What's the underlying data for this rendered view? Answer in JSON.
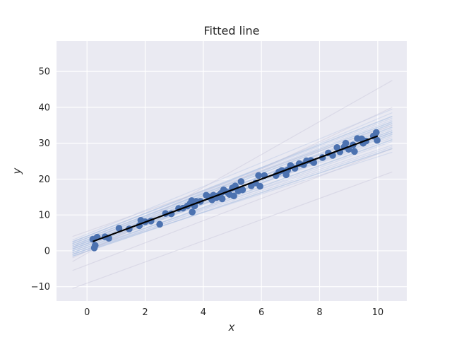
{
  "chart_data": {
    "type": "scatter",
    "title": "Fitted line",
    "xlabel": "x",
    "ylabel": "y",
    "xlim": [
      -1.05,
      11.0
    ],
    "ylim": [
      -14.0,
      58.5
    ],
    "xticks": [
      0,
      2,
      4,
      6,
      8,
      10
    ],
    "yticks": [
      -10,
      0,
      10,
      20,
      30,
      40,
      50
    ],
    "xtick_labels": [
      "0",
      "2",
      "4",
      "6",
      "8",
      "10"
    ],
    "ytick_labels": [
      "−10",
      "0",
      "10",
      "20",
      "30",
      "40",
      "50"
    ],
    "grid": true,
    "colors": {
      "background": "#eaeaf2",
      "grid": "#ffffff",
      "points": "#4c72b0",
      "fit": "#000000",
      "samples_main": "#a4bbe0",
      "samples_faint": "#c7c5da"
    },
    "fit_line": {
      "x": [
        0.2,
        10.0
      ],
      "y": [
        2.6,
        32.0
      ]
    },
    "sample_lines": [
      {
        "x": [
          -0.5,
          10.5
        ],
        "y": [
          2.5,
          37.5
        ],
        "strength": "strong"
      },
      {
        "x": [
          -0.5,
          10.5
        ],
        "y": [
          2.0,
          36.0
        ],
        "strength": "strong"
      },
      {
        "x": [
          -0.5,
          10.5
        ],
        "y": [
          1.5,
          35.5
        ],
        "strength": "strong"
      },
      {
        "x": [
          -0.5,
          10.5
        ],
        "y": [
          1.0,
          34.5
        ],
        "strength": "strong"
      },
      {
        "x": [
          -0.5,
          10.5
        ],
        "y": [
          0.5,
          33.5
        ],
        "strength": "strong"
      },
      {
        "x": [
          -0.5,
          10.5
        ],
        "y": [
          0.0,
          33.0
        ],
        "strength": "strong"
      },
      {
        "x": [
          -0.5,
          10.5
        ],
        "y": [
          -0.5,
          32.5
        ],
        "strength": "strong"
      },
      {
        "x": [
          -0.5,
          10.5
        ],
        "y": [
          -1.0,
          31.0
        ],
        "strength": "strong"
      },
      {
        "x": [
          -0.5,
          10.5
        ],
        "y": [
          -1.5,
          28.5
        ],
        "strength": "strong"
      },
      {
        "x": [
          -0.5,
          10.5
        ],
        "y": [
          -1.0,
          27.5
        ],
        "strength": "medium"
      },
      {
        "x": [
          -0.5,
          10.5
        ],
        "y": [
          3.0,
          39.5
        ],
        "strength": "medium"
      },
      {
        "x": [
          -0.5,
          10.5
        ],
        "y": [
          1.0,
          38.5
        ],
        "strength": "medium"
      },
      {
        "x": [
          -0.5,
          10.5
        ],
        "y": [
          -0.5,
          29.5
        ],
        "strength": "medium"
      },
      {
        "x": [
          -0.5,
          10.5
        ],
        "y": [
          0.5,
          31.5
        ],
        "strength": "medium"
      },
      {
        "x": [
          -0.5,
          10.5
        ],
        "y": [
          2.0,
          36.5
        ],
        "strength": "medium"
      },
      {
        "x": [
          -0.5,
          10.5
        ],
        "y": [
          -1.5,
          30.5
        ],
        "strength": "medium"
      },
      {
        "x": [
          -0.5,
          10.5
        ],
        "y": [
          1.5,
          34.0
        ],
        "strength": "medium"
      },
      {
        "x": [
          -0.5,
          10.5
        ],
        "y": [
          0.0,
          32.0
        ],
        "strength": "medium"
      },
      {
        "x": [
          -0.5,
          10.5
        ],
        "y": [
          2.5,
          37.0
        ],
        "strength": "medium"
      },
      {
        "x": [
          -0.5,
          10.5
        ],
        "y": [
          -1.0,
          29.0
        ],
        "strength": "medium"
      },
      {
        "x": [
          -0.5,
          10.5
        ],
        "y": [
          1.0,
          33.0
        ],
        "strength": "medium"
      },
      {
        "x": [
          -0.5,
          10.5
        ],
        "y": [
          0.5,
          35.0
        ],
        "strength": "medium"
      },
      {
        "x": [
          -0.5,
          10.5
        ],
        "y": [
          -3.0,
          47.5
        ],
        "strength": "faint"
      },
      {
        "x": [
          -0.5,
          10.5
        ],
        "y": [
          -10.5,
          22.0
        ],
        "strength": "faint"
      },
      {
        "x": [
          -0.5,
          10.5
        ],
        "y": [
          -5.5,
          28.5
        ],
        "strength": "faint"
      },
      {
        "x": [
          -0.5,
          10.5
        ],
        "y": [
          4.0,
          35.0
        ],
        "strength": "faint"
      },
      {
        "x": [
          -0.5,
          10.5
        ],
        "y": [
          -2.0,
          40.0
        ],
        "strength": "faint"
      }
    ],
    "points": [
      {
        "x": 0.2,
        "y": 3.2
      },
      {
        "x": 0.25,
        "y": 0.8
      },
      {
        "x": 0.28,
        "y": 1.5
      },
      {
        "x": 0.35,
        "y": 3.8
      },
      {
        "x": 0.62,
        "y": 3.9
      },
      {
        "x": 0.75,
        "y": 3.5
      },
      {
        "x": 1.1,
        "y": 6.3
      },
      {
        "x": 1.45,
        "y": 6.1
      },
      {
        "x": 1.8,
        "y": 7.0
      },
      {
        "x": 1.85,
        "y": 8.5
      },
      {
        "x": 2.0,
        "y": 8.1
      },
      {
        "x": 2.2,
        "y": 8.3
      },
      {
        "x": 2.5,
        "y": 7.4
      },
      {
        "x": 2.7,
        "y": 10.4
      },
      {
        "x": 2.9,
        "y": 10.3
      },
      {
        "x": 3.15,
        "y": 11.8
      },
      {
        "x": 3.3,
        "y": 11.9
      },
      {
        "x": 3.45,
        "y": 12.5
      },
      {
        "x": 3.55,
        "y": 13.2
      },
      {
        "x": 3.6,
        "y": 14.0
      },
      {
        "x": 3.62,
        "y": 10.8
      },
      {
        "x": 3.7,
        "y": 12.5
      },
      {
        "x": 3.75,
        "y": 13.8
      },
      {
        "x": 3.9,
        "y": 13.8
      },
      {
        "x": 4.1,
        "y": 15.5
      },
      {
        "x": 4.2,
        "y": 15.0
      },
      {
        "x": 4.3,
        "y": 14.2
      },
      {
        "x": 4.35,
        "y": 15.5
      },
      {
        "x": 4.45,
        "y": 14.8
      },
      {
        "x": 4.5,
        "y": 15.3
      },
      {
        "x": 4.6,
        "y": 16.0
      },
      {
        "x": 4.65,
        "y": 14.5
      },
      {
        "x": 4.7,
        "y": 17.0
      },
      {
        "x": 4.75,
        "y": 16.6
      },
      {
        "x": 4.85,
        "y": 16.2
      },
      {
        "x": 4.9,
        "y": 15.7
      },
      {
        "x": 5.0,
        "y": 17.5
      },
      {
        "x": 5.05,
        "y": 15.3
      },
      {
        "x": 5.1,
        "y": 18.1
      },
      {
        "x": 5.2,
        "y": 16.7
      },
      {
        "x": 5.3,
        "y": 19.3
      },
      {
        "x": 5.35,
        "y": 17.0
      },
      {
        "x": 5.65,
        "y": 18.1
      },
      {
        "x": 5.8,
        "y": 18.9
      },
      {
        "x": 5.9,
        "y": 21.0
      },
      {
        "x": 5.95,
        "y": 18.0
      },
      {
        "x": 6.1,
        "y": 21.0
      },
      {
        "x": 6.5,
        "y": 21.0
      },
      {
        "x": 6.6,
        "y": 22.0
      },
      {
        "x": 6.7,
        "y": 22.4
      },
      {
        "x": 6.85,
        "y": 21.2
      },
      {
        "x": 6.9,
        "y": 22.5
      },
      {
        "x": 7.0,
        "y": 23.8
      },
      {
        "x": 7.15,
        "y": 23.0
      },
      {
        "x": 7.3,
        "y": 24.3
      },
      {
        "x": 7.45,
        "y": 24.0
      },
      {
        "x": 7.55,
        "y": 25.1
      },
      {
        "x": 7.7,
        "y": 25.2
      },
      {
        "x": 7.8,
        "y": 24.6
      },
      {
        "x": 8.1,
        "y": 26.0
      },
      {
        "x": 8.3,
        "y": 27.3
      },
      {
        "x": 8.45,
        "y": 26.6
      },
      {
        "x": 8.6,
        "y": 28.8
      },
      {
        "x": 8.7,
        "y": 27.6
      },
      {
        "x": 8.85,
        "y": 29.0
      },
      {
        "x": 8.9,
        "y": 30.0
      },
      {
        "x": 9.0,
        "y": 28.3
      },
      {
        "x": 9.15,
        "y": 29.5
      },
      {
        "x": 9.2,
        "y": 27.7
      },
      {
        "x": 9.3,
        "y": 31.3
      },
      {
        "x": 9.45,
        "y": 31.2
      },
      {
        "x": 9.5,
        "y": 30.0
      },
      {
        "x": 9.6,
        "y": 30.6
      },
      {
        "x": 9.85,
        "y": 32.0
      },
      {
        "x": 9.95,
        "y": 33.0
      },
      {
        "x": 9.98,
        "y": 30.8
      }
    ]
  }
}
